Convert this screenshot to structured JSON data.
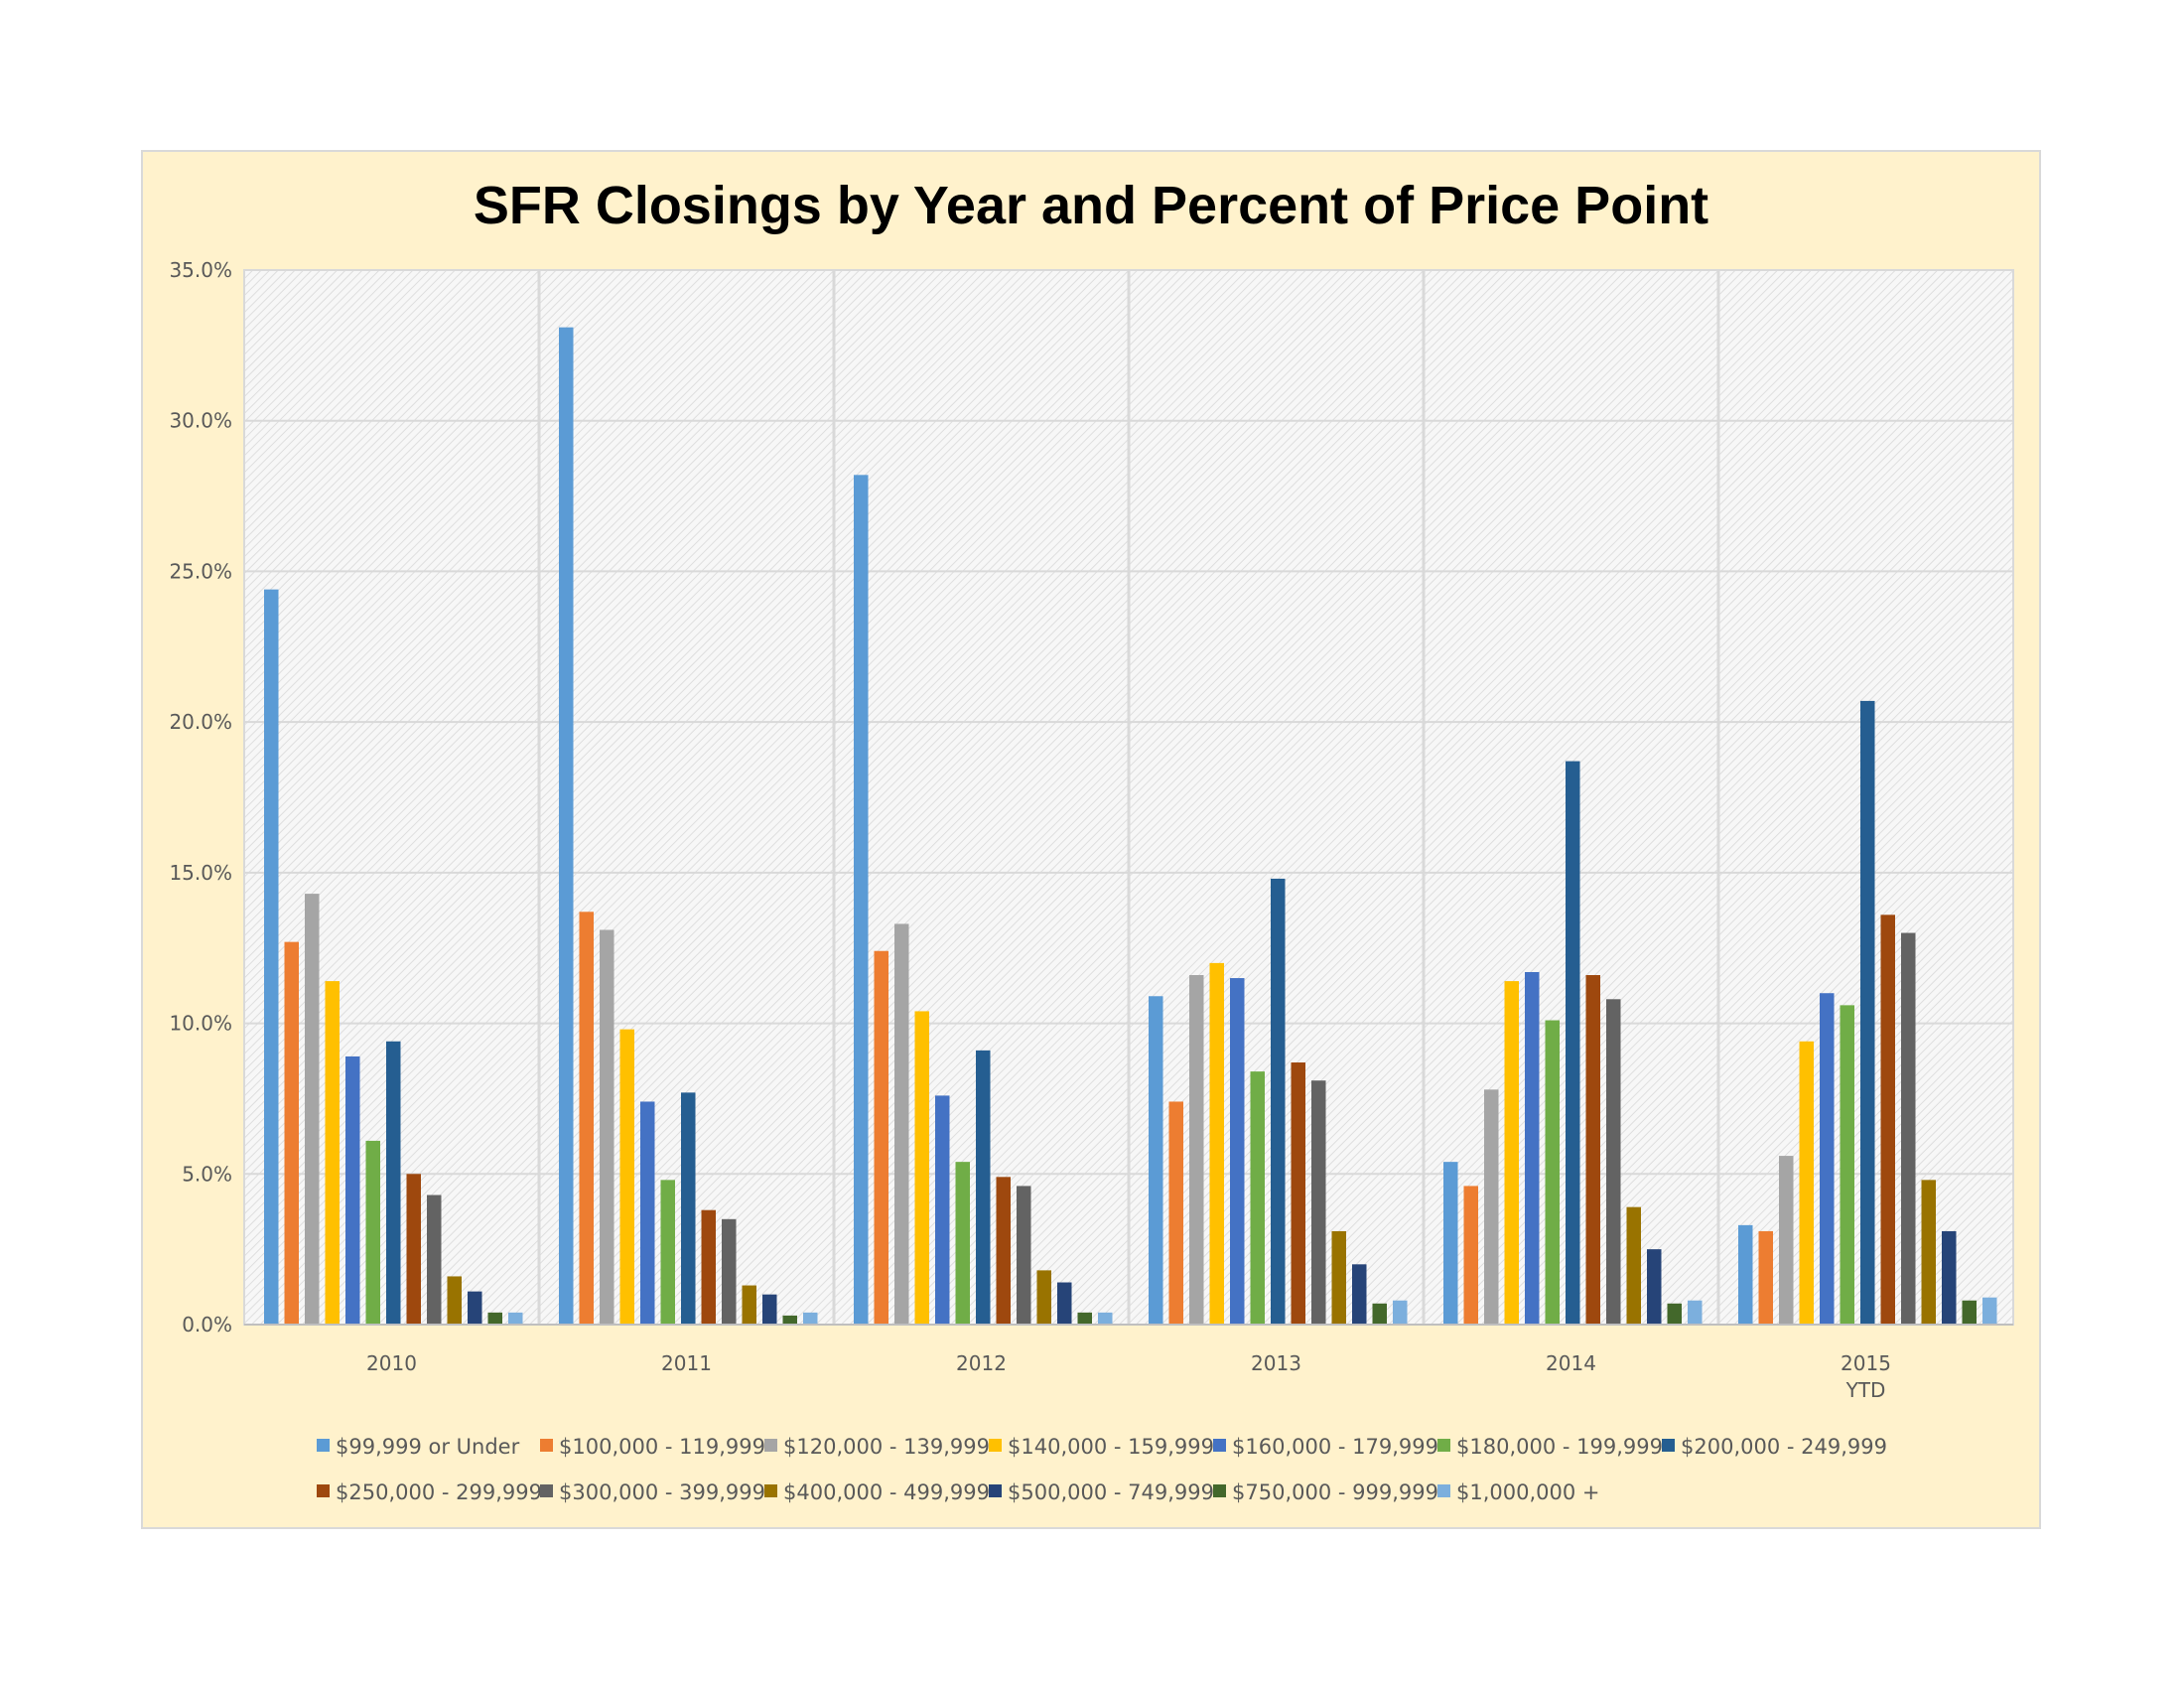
{
  "chart_data": {
    "type": "bar",
    "title": "SFR Closings by Year and Percent of Price Point",
    "xlabel": "",
    "ylabel": "",
    "ylim": [
      0,
      35
    ],
    "y_ticks": [
      "0.0%",
      "5.0%",
      "10.0%",
      "15.0%",
      "20.0%",
      "25.0%",
      "30.0%",
      "35.0%"
    ],
    "categories": [
      "2010",
      "2011",
      "2012",
      "2013",
      "2014",
      "2015"
    ],
    "category_sublabels": [
      "",
      "",
      "",
      "",
      "",
      "YTD"
    ],
    "grid": true,
    "legend_position": "bottom",
    "series": [
      {
        "name": "$99,999 or Under",
        "color": "#5b9bd5",
        "values": [
          24.4,
          33.1,
          28.2,
          10.9,
          5.4,
          3.3
        ]
      },
      {
        "name": "$100,000 - 119,999",
        "color": "#ed7d31",
        "values": [
          12.7,
          13.7,
          12.4,
          7.4,
          4.6,
          3.1
        ]
      },
      {
        "name": "$120,000 - 139,999",
        "color": "#a5a5a5",
        "values": [
          14.3,
          13.1,
          13.3,
          11.6,
          7.8,
          5.6
        ]
      },
      {
        "name": "$140,000 - 159,999",
        "color": "#ffc000",
        "values": [
          11.4,
          9.8,
          10.4,
          12.0,
          11.4,
          9.4
        ]
      },
      {
        "name": "$160,000 - 179,999",
        "color": "#4472c4",
        "values": [
          8.9,
          7.4,
          7.6,
          11.5,
          11.7,
          11.0
        ]
      },
      {
        "name": "$180,000 - 199,999",
        "color": "#70ad47",
        "values": [
          6.1,
          4.8,
          5.4,
          8.4,
          10.1,
          10.6
        ]
      },
      {
        "name": "$200,000 - 249,999",
        "color": "#255e91",
        "values": [
          9.4,
          7.7,
          9.1,
          14.8,
          18.7,
          20.7
        ]
      },
      {
        "name": "$250,000 - 299,999",
        "color": "#9e480e",
        "values": [
          5.0,
          3.8,
          4.9,
          8.7,
          11.6,
          13.6
        ]
      },
      {
        "name": "$300,000 - 399,999",
        "color": "#636363",
        "values": [
          4.3,
          3.5,
          4.6,
          8.1,
          10.8,
          13.0
        ]
      },
      {
        "name": "$400,000 - 499,999",
        "color": "#997300",
        "values": [
          1.6,
          1.3,
          1.8,
          3.1,
          3.9,
          4.8
        ]
      },
      {
        "name": "$500,000 - 749,999",
        "color": "#264478",
        "values": [
          1.1,
          1.0,
          1.4,
          2.0,
          2.5,
          3.1
        ]
      },
      {
        "name": "$750,000 - 999,999",
        "color": "#43682b",
        "values": [
          0.4,
          0.3,
          0.4,
          0.7,
          0.7,
          0.8
        ]
      },
      {
        "name": "$1,000,000 +",
        "color": "#7cafdd",
        "values": [
          0.4,
          0.4,
          0.4,
          0.8,
          0.8,
          0.9
        ]
      }
    ]
  }
}
